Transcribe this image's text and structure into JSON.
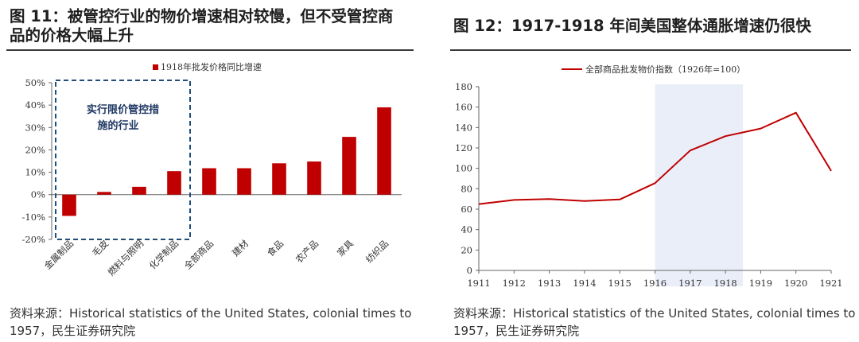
{
  "left": {
    "title_line1": "图 11：被管控行业的物价增速相对较慢，但不受管控商",
    "title_line2": "品的价格大幅上升",
    "source_line1": "资料来源：Historical statistics of the United States, colonial times to",
    "source_line2": "1957，民生证券研究院"
  },
  "right": {
    "title": "图 12：1917-1918 年间美国整体通胀增速仍很快",
    "source_line1": "资料来源：Historical statistics of the United States, colonial times to",
    "source_line2": "1957，民生证券研究院"
  },
  "colors": {
    "bar": "#c00000",
    "line": "#c00000",
    "highlight": "#e9eef9",
    "note_box": "#1f4e79"
  },
  "chart_data": [
    {
      "type": "bar",
      "title": "",
      "xlabel": "",
      "ylabel": "",
      "categories": [
        "金属制品",
        "毛皮",
        "燃料与照明",
        "化学制品",
        "全部商品",
        "建材",
        "食品",
        "农产品",
        "家具",
        "纺织品"
      ],
      "series": [
        {
          "name": "1918年批发价格同比增速",
          "values": [
            -9.5,
            1.2,
            3.5,
            10.5,
            11.8,
            11.8,
            14.0,
            14.8,
            25.8,
            39.0
          ]
        }
      ],
      "ylim": [
        -20,
        50
      ],
      "yticks": [
        -20,
        -10,
        0,
        10,
        20,
        30,
        40,
        50
      ],
      "ytick_format": "percent",
      "grid": false,
      "legend": "top-center",
      "annotation": {
        "text_line1": "实行限价管控措",
        "text_line2": "施的行业",
        "covers": [
          "金属制品",
          "毛皮",
          "燃料与照明",
          "化学制品"
        ]
      }
    },
    {
      "type": "line",
      "title": "",
      "xlabel": "",
      "ylabel": "",
      "x": [
        1911,
        1912,
        1913,
        1914,
        1915,
        1916,
        1917,
        1918,
        1919,
        1920,
        1921
      ],
      "series": [
        {
          "name": "全部商品批发物价指数（1926年=100）",
          "values": [
            65,
            69,
            70,
            68,
            69.5,
            85.5,
            117.5,
            131.5,
            139,
            154.5,
            97.5
          ]
        }
      ],
      "ylim": [
        0,
        180
      ],
      "yticks": [
        0,
        20,
        40,
        60,
        80,
        100,
        120,
        140,
        160,
        180
      ],
      "grid": false,
      "legend": "top-center",
      "shaded_x_range": [
        1916,
        1918
      ]
    }
  ]
}
